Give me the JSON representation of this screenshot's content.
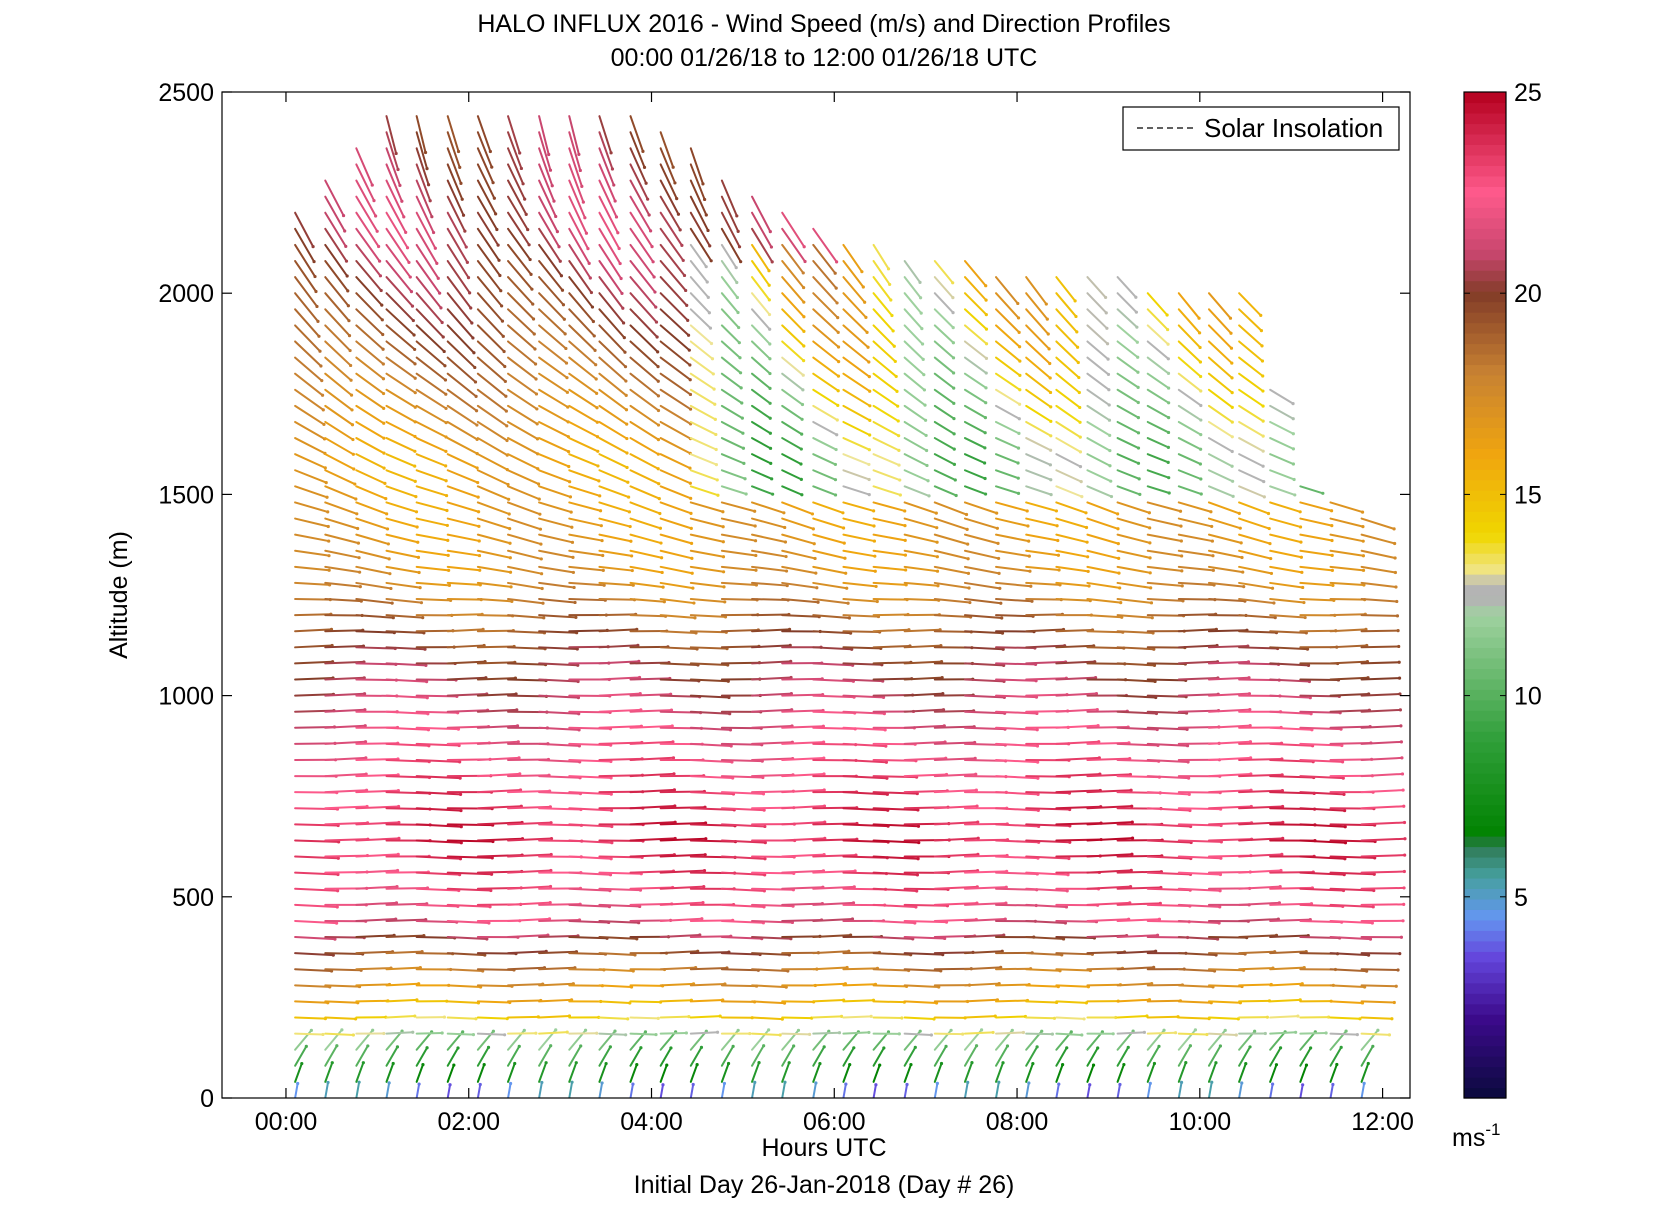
{
  "chart_data": {
    "type": "wind-barb-profile",
    "title": "HALO INFLUX 2016 - Wind Speed (m/s) and Direction Profiles",
    "subtitle": "00:00 01/26/18 to 12:00 01/26/18  UTC",
    "xlabel": "Hours UTC",
    "xlabel2": "Initial Day 26-Jan-2018 (Day # 26)",
    "ylabel": "Altitude (m)",
    "xlim": [
      -0.7,
      12.3
    ],
    "ylim": [
      0,
      2500
    ],
    "xticks": [
      0,
      2,
      4,
      6,
      8,
      10,
      12
    ],
    "xtick_labels": [
      "00:00",
      "02:00",
      "04:00",
      "06:00",
      "08:00",
      "10:00",
      "12:00"
    ],
    "yticks": [
      0,
      500,
      1000,
      1500,
      2000,
      2500
    ],
    "ytick_labels": [
      "0",
      "500",
      "1000",
      "1500",
      "2000",
      "2500"
    ],
    "legend": {
      "label": "Solar Insolation",
      "placement": "top-right",
      "line_style": "dashed",
      "color": "#000000"
    },
    "colorbar": {
      "label": "ms",
      "label_superscript": "-1",
      "range": [
        0,
        25
      ],
      "ticks": [
        5,
        10,
        15,
        20,
        25
      ],
      "tick_labels": [
        "5",
        "10",
        "15",
        "20",
        "25"
      ],
      "colormap": [
        {
          "v": 0,
          "color": "#0a0a3c"
        },
        {
          "v": 2,
          "color": "#3c0a8c"
        },
        {
          "v": 3.5,
          "color": "#6446dc"
        },
        {
          "v": 4.5,
          "color": "#6496f0"
        },
        {
          "v": 5.5,
          "color": "#46a0a0"
        },
        {
          "v": 6.3,
          "color": "#2d7850"
        },
        {
          "v": 6.5,
          "color": "#008200"
        },
        {
          "v": 9,
          "color": "#32a03c"
        },
        {
          "v": 12,
          "color": "#a0d2a0"
        },
        {
          "v": 12.4,
          "color": "#b4b4b4"
        },
        {
          "v": 12.8,
          "color": "#b4b4b4"
        },
        {
          "v": 13,
          "color": "#f0e696"
        },
        {
          "v": 14,
          "color": "#f0d700"
        },
        {
          "v": 16,
          "color": "#f0a50f"
        },
        {
          "v": 18,
          "color": "#c88232"
        },
        {
          "v": 20,
          "color": "#823c28"
        },
        {
          "v": 21,
          "color": "#c8466e"
        },
        {
          "v": 22.5,
          "color": "#ff5a8c"
        },
        {
          "v": 25,
          "color": "#b4001e"
        }
      ]
    },
    "profile_times_hours": [
      0.1,
      0.43,
      0.77,
      1.1,
      1.43,
      1.77,
      2.1,
      2.43,
      2.77,
      3.1,
      3.43,
      3.77,
      4.1,
      4.43,
      4.77,
      5.1,
      5.43,
      5.77,
      6.1,
      6.43,
      6.77,
      7.1,
      7.43,
      7.77,
      8.1,
      8.43,
      8.77,
      9.1,
      9.43,
      9.77,
      10.1,
      10.43,
      10.77,
      11.1,
      11.43,
      11.77
    ],
    "altitude_gate_spacing_m": 40,
    "speed_profile_by_altitude": [
      {
        "alt": 0,
        "speed": 4.5
      },
      {
        "alt": 40,
        "speed": 7.5
      },
      {
        "alt": 120,
        "speed": 11
      },
      {
        "alt": 250,
        "speed": 16
      },
      {
        "alt": 450,
        "speed": 22
      },
      {
        "alt": 650,
        "speed": 24
      },
      {
        "alt": 900,
        "speed": 22
      },
      {
        "alt": 1100,
        "speed": 20
      },
      {
        "alt": 1300,
        "speed": 17
      },
      {
        "alt": 1600,
        "speed": 16
      },
      {
        "alt": 1900,
        "speed": 19
      },
      {
        "alt": 2200,
        "speed": 21
      },
      {
        "alt": 2500,
        "speed": 20
      }
    ],
    "max_altitude_by_time": [
      {
        "t": 0.1,
        "alt": 2200
      },
      {
        "t": 1.1,
        "alt": 2460
      },
      {
        "t": 3.77,
        "alt": 2460
      },
      {
        "t": 5.77,
        "alt": 2170
      },
      {
        "t": 6.77,
        "alt": 2100
      },
      {
        "t": 8.77,
        "alt": 2050
      },
      {
        "t": 10.43,
        "alt": 2000
      },
      {
        "t": 11.1,
        "alt": 1550
      },
      {
        "t": 11.77,
        "alt": 1460
      }
    ]
  }
}
